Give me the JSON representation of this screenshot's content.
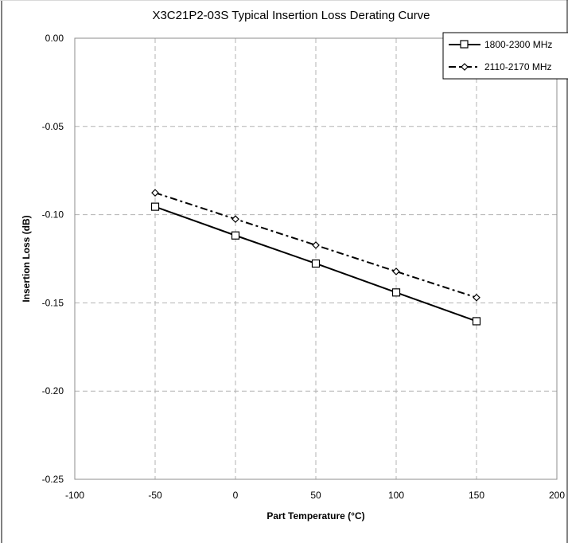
{
  "chart_data": {
    "type": "line",
    "title": "X3C21P2-03S Typical Insertion Loss Derating Curve",
    "xlabel": "Part Temperature (°C)",
    "ylabel": "Insertion Loss (dB)",
    "xlim": [
      -100,
      200
    ],
    "ylim": [
      -0.25,
      0.0
    ],
    "xticks": [
      -100,
      -50,
      0,
      50,
      100,
      150,
      200
    ],
    "xtick_labels": [
      "-100",
      "-50",
      "0",
      "50",
      "100",
      "150",
      "200"
    ],
    "yticks": [
      0.0,
      -0.05,
      -0.1,
      -0.15,
      -0.2,
      -0.25
    ],
    "ytick_labels": [
      "0.00",
      "-0.05",
      "-0.10",
      "-0.15",
      "-0.20",
      "-0.25"
    ],
    "grid": true,
    "legend_position": "top-right",
    "series": [
      {
        "name": "1800-2300 MHz",
        "line_style": "solid",
        "marker": "square",
        "color": "#000000",
        "x": [
          -50,
          0,
          50,
          100,
          150
        ],
        "y": [
          -0.0955,
          -0.1118,
          -0.1277,
          -0.1441,
          -0.1604
        ]
      },
      {
        "name": "2110-2170 MHz",
        "line_style": "dash-dot",
        "marker": "diamond",
        "color": "#000000",
        "x": [
          -50,
          0,
          50,
          100,
          150
        ],
        "y": [
          -0.0876,
          -0.1025,
          -0.1173,
          -0.1322,
          -0.147
        ]
      }
    ]
  }
}
